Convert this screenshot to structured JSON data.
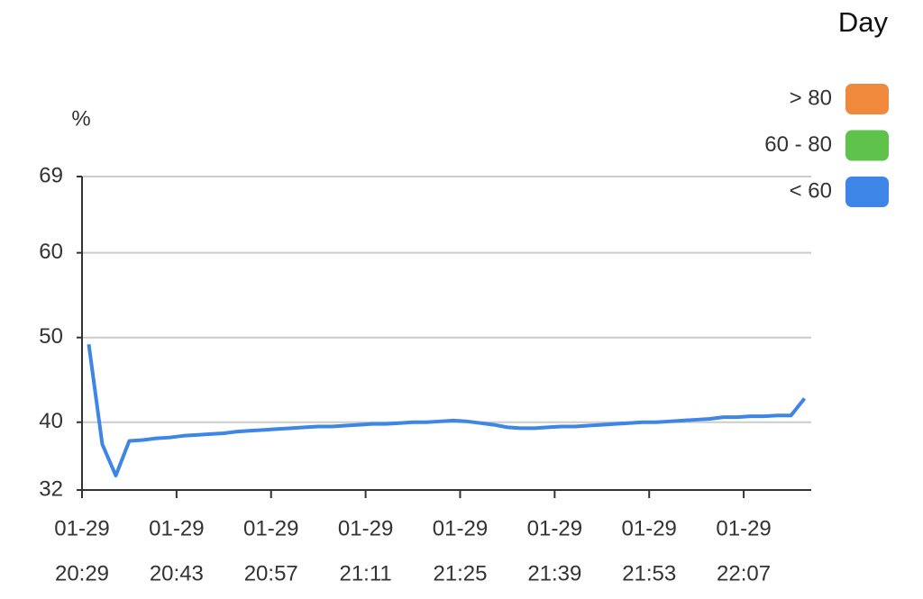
{
  "chart_data": {
    "type": "line",
    "y_unit": "%",
    "legend": {
      "title": "Day",
      "position": "top-right",
      "items": [
        {
          "label": "> 80",
          "color": "#f0893b"
        },
        {
          "label": "60 - 80",
          "color": "#5ec24b"
        },
        {
          "label": "< 60",
          "color": "#3d85e6"
        }
      ]
    },
    "x": [
      "01-29 20:30",
      "01-29 20:32",
      "01-29 20:34",
      "01-29 20:36",
      "01-29 20:38",
      "01-29 20:40",
      "01-29 20:42",
      "01-29 20:44",
      "01-29 20:46",
      "01-29 20:48",
      "01-29 20:50",
      "01-29 20:52",
      "01-29 20:54",
      "01-29 20:56",
      "01-29 20:58",
      "01-29 21:00",
      "01-29 21:02",
      "01-29 21:04",
      "01-29 21:06",
      "01-29 21:08",
      "01-29 21:10",
      "01-29 21:12",
      "01-29 21:14",
      "01-29 21:16",
      "01-29 21:18",
      "01-29 21:20",
      "01-29 21:22",
      "01-29 21:24",
      "01-29 21:26",
      "01-29 21:28",
      "01-29 21:30",
      "01-29 21:32",
      "01-29 21:34",
      "01-29 21:36",
      "01-29 21:38",
      "01-29 21:40",
      "01-29 21:42",
      "01-29 21:44",
      "01-29 21:46",
      "01-29 21:48",
      "01-29 21:50",
      "01-29 21:52",
      "01-29 21:54",
      "01-29 21:56",
      "01-29 21:58",
      "01-29 22:00",
      "01-29 22:02",
      "01-29 22:04",
      "01-29 22:06",
      "01-29 22:08",
      "01-29 22:10",
      "01-29 22:12",
      "01-29 22:14",
      "01-29 22:16"
    ],
    "series": [
      {
        "color": "#3d85e6",
        "values": [
          49.2,
          37.4,
          33.7,
          37.8,
          37.9,
          38.1,
          38.2,
          38.4,
          38.5,
          38.6,
          38.7,
          38.9,
          39.0,
          39.1,
          39.2,
          39.3,
          39.4,
          39.5,
          39.5,
          39.6,
          39.7,
          39.8,
          39.8,
          39.9,
          40.0,
          40.0,
          40.1,
          40.2,
          40.1,
          39.9,
          39.7,
          39.4,
          39.3,
          39.3,
          39.4,
          39.5,
          39.5,
          39.6,
          39.7,
          39.8,
          39.9,
          40.0,
          40.0,
          40.1,
          40.2,
          40.3,
          40.4,
          40.6,
          40.6,
          40.7,
          40.7,
          40.8,
          40.8,
          42.8
        ]
      }
    ],
    "xlim": [
      "01-29 20:29",
      "01-29 22:17"
    ],
    "xticks": [
      {
        "value": "01-29 20:29",
        "label": [
          "01-29",
          "20:29"
        ]
      },
      {
        "value": "01-29 20:43",
        "label": [
          "01-29",
          "20:43"
        ]
      },
      {
        "value": "01-29 20:57",
        "label": [
          "01-29",
          "20:57"
        ]
      },
      {
        "value": "01-29 21:11",
        "label": [
          "01-29",
          "21:11"
        ]
      },
      {
        "value": "01-29 21:25",
        "label": [
          "01-29",
          "21:25"
        ]
      },
      {
        "value": "01-29 21:39",
        "label": [
          "01-29",
          "21:39"
        ]
      },
      {
        "value": "01-29 21:53",
        "label": [
          "01-29",
          "21:53"
        ]
      },
      {
        "value": "01-29 22:07",
        "label": [
          "01-29",
          "22:07"
        ]
      }
    ],
    "ylim": [
      32,
      69
    ],
    "yticks": [
      32,
      40,
      50,
      60,
      69
    ],
    "grid": true
  }
}
